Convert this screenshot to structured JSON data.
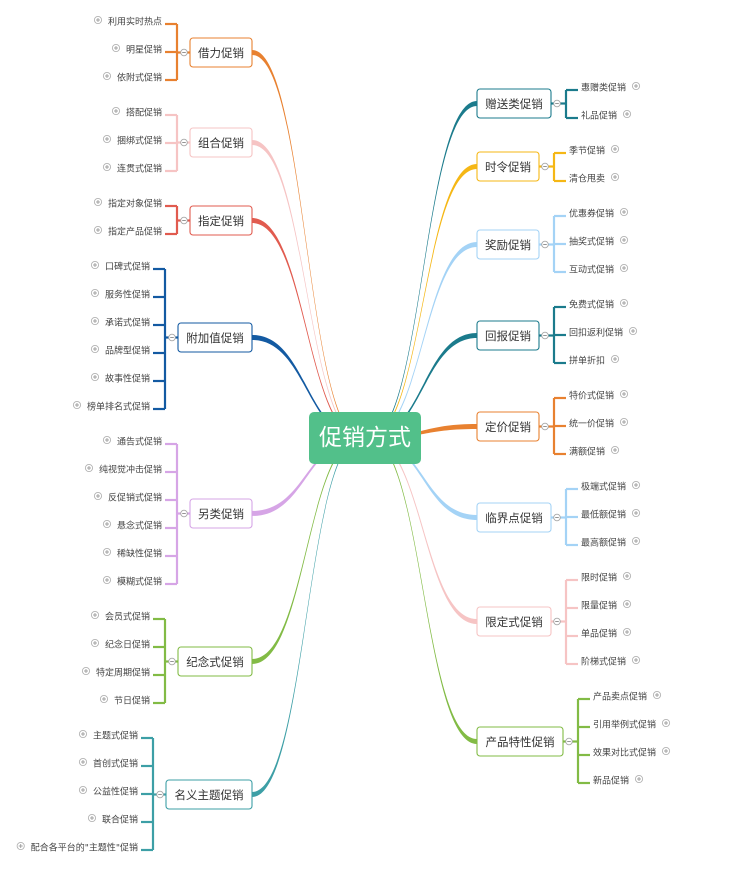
{
  "center": {
    "label": "促销方式"
  },
  "left": [
    {
      "label": "借力促销",
      "color": "#e88130",
      "children": [
        "利用实时热点",
        "明星促销",
        "依附式促销"
      ]
    },
    {
      "label": "组合促销",
      "color": "#f6c4c4",
      "children": [
        "搭配促销",
        "捆绑式促销",
        "连贯式促销"
      ]
    },
    {
      "label": "指定促销",
      "color": "#e15b4f",
      "children": [
        "指定对象促销",
        "指定产品促销"
      ]
    },
    {
      "label": "附加值促销",
      "color": "#135aa2",
      "children": [
        "口碑式促销",
        "服务性促销",
        "承诺式促销",
        "品牌型促销",
        "故事性促销",
        "榜单排名式促销"
      ]
    },
    {
      "label": "另类促销",
      "color": "#d6a5e6",
      "children": [
        "通告式促销",
        "纯视觉冲击促销",
        "反促销式促销",
        "悬念式促销",
        "稀缺性促销",
        "模糊式促销"
      ]
    },
    {
      "label": "纪念式促销",
      "color": "#82bb45",
      "children": [
        "会员式促销",
        "纪念日促销",
        "特定周期促销",
        "节日促销"
      ]
    },
    {
      "label": "名义主题促销",
      "color": "#3d9fa6",
      "children": [
        "主题式促销",
        "首创式促销",
        "公益性促销",
        "联合促销",
        "配合各平台的\"主题性\"促销"
      ]
    }
  ],
  "right": [
    {
      "label": "赠送类促销",
      "color": "#1b7b8c",
      "children": [
        "惠赠类促销",
        "礼品促销"
      ]
    },
    {
      "label": "时令促销",
      "color": "#f5b715",
      "children": [
        "季节促销",
        "清仓甩卖"
      ]
    },
    {
      "label": "奖励促销",
      "color": "#a4d3f6",
      "children": [
        "优惠券促销",
        "抽奖式促销",
        "互动式促销"
      ]
    },
    {
      "label": "回报促销",
      "color": "#1b7b8c",
      "children": [
        "免费式促销",
        "回扣返利促销",
        "拼单折扣"
      ]
    },
    {
      "label": "定价促销",
      "color": "#e88130",
      "children": [
        "特价式促销",
        "统一价促销",
        "满额促销"
      ]
    },
    {
      "label": "临界点促销",
      "color": "#a4d3f6",
      "children": [
        "极端式促销",
        "最低额促销",
        "最高额促销"
      ]
    },
    {
      "label": "限定式促销",
      "color": "#f6c4c4",
      "children": [
        "限时促销",
        "限量促销",
        "单品促销",
        "阶梯式促销"
      ]
    },
    {
      "label": "产品特性促销",
      "color": "#82bb45",
      "children": [
        "产品卖点促销",
        "引用举例式促销",
        "效果对比式促销",
        "新品促销"
      ]
    }
  ]
}
